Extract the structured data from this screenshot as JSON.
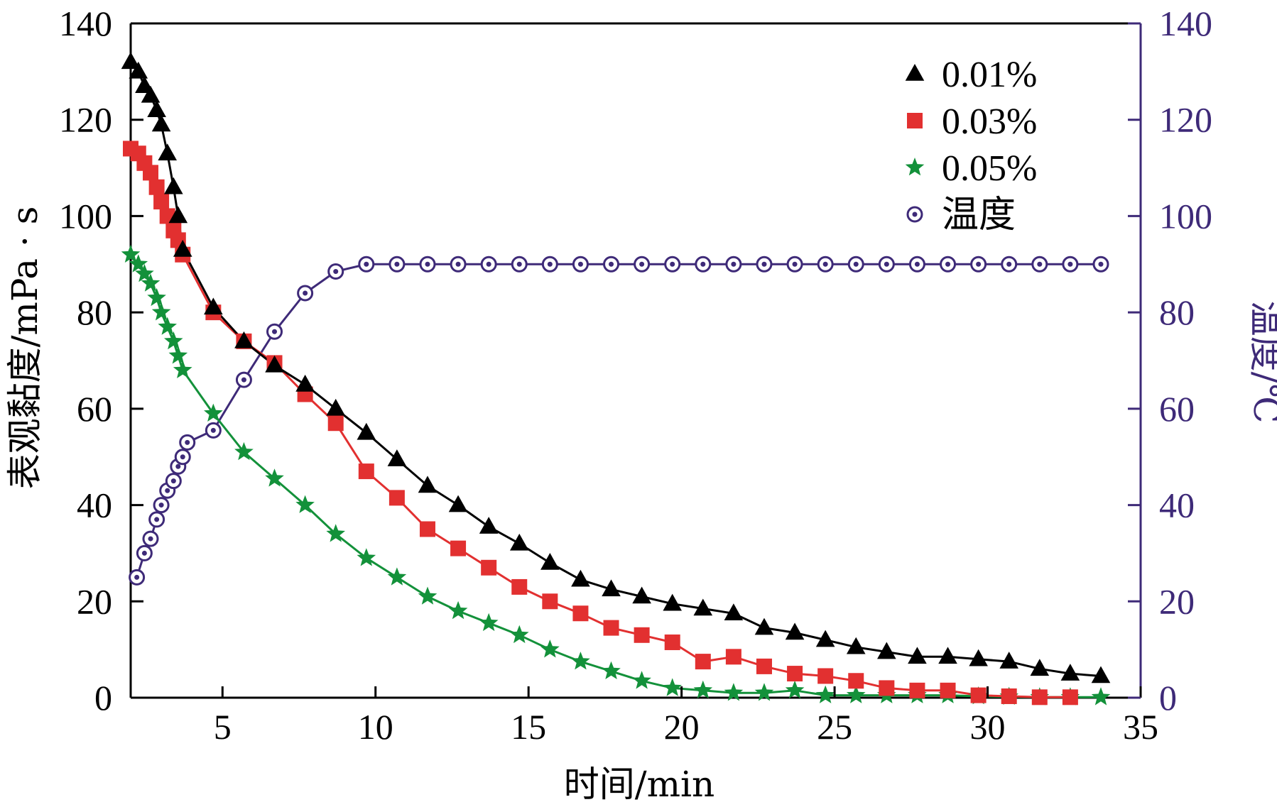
{
  "chart_data": {
    "type": "line",
    "title": "",
    "xlabel": "时间/min",
    "ylabel_left": "表观黏度/mPa · s",
    "ylabel_right": "温度/℃",
    "xlim": [
      2,
      35
    ],
    "ylim_left": [
      0,
      140
    ],
    "ylim_right": [
      0,
      140
    ],
    "x_ticks": [
      5,
      10,
      15,
      20,
      25,
      30,
      35
    ],
    "y_ticks_left": [
      0,
      20,
      40,
      60,
      80,
      100,
      120,
      140
    ],
    "y_ticks_right": [
      0,
      20,
      40,
      60,
      80,
      100,
      120,
      140
    ],
    "grid": false,
    "legend_position": "top-right",
    "colors": {
      "frame": "#000000",
      "right_axis": "#3e2a78",
      "s001": "#000000",
      "s003": "#e23030",
      "s005": "#13913a",
      "temp": "#3e2a78"
    },
    "series": [
      {
        "name": "0.01%",
        "marker": "triangle",
        "axis": "left",
        "x": [
          2.0,
          2.25,
          2.45,
          2.65,
          2.85,
          3.0,
          3.2,
          3.4,
          3.55,
          3.7,
          4.7,
          5.7,
          6.7,
          7.7,
          8.7,
          9.7,
          10.7,
          11.7,
          12.7,
          13.7,
          14.7,
          15.7,
          16.7,
          17.7,
          18.7,
          19.7,
          20.7,
          21.7,
          22.7,
          23.7,
          24.7,
          25.7,
          26.7,
          27.7,
          28.7,
          29.7,
          30.7,
          31.7,
          32.7,
          33.7
        ],
        "values": [
          132,
          130,
          127,
          125,
          122,
          119,
          113,
          106,
          100,
          93,
          81,
          74,
          69,
          65,
          60,
          55,
          49.5,
          44,
          40,
          35.5,
          32,
          28,
          24.5,
          22.5,
          21,
          19.5,
          18.5,
          17.5,
          14.5,
          13.5,
          12,
          10.5,
          9.5,
          8.5,
          8.5,
          8,
          7.5,
          6,
          5,
          4.5
        ]
      },
      {
        "name": "0.03%",
        "marker": "square",
        "axis": "left",
        "x": [
          2.0,
          2.25,
          2.45,
          2.65,
          2.85,
          3.0,
          3.2,
          3.4,
          3.55,
          3.7,
          4.7,
          5.7,
          6.7,
          7.7,
          8.7,
          9.7,
          10.7,
          11.7,
          12.7,
          13.7,
          14.7,
          15.7,
          16.7,
          17.7,
          18.7,
          19.7,
          20.7,
          21.7,
          22.7,
          23.7,
          24.7,
          25.7,
          26.7,
          27.7,
          28.7,
          29.7,
          30.7,
          31.7,
          32.7
        ],
        "values": [
          114,
          113,
          111,
          109,
          106,
          103,
          100,
          97,
          95,
          92,
          80,
          74,
          69.5,
          63,
          57,
          47,
          41.5,
          35,
          31,
          27,
          23,
          20,
          17.5,
          14.5,
          13,
          11.5,
          7.5,
          8.5,
          6.5,
          5,
          4.5,
          3.5,
          2,
          1.5,
          1.5,
          0.5,
          0.3,
          0.1,
          0.1
        ]
      },
      {
        "name": "0.05%",
        "marker": "star",
        "axis": "left",
        "x": [
          2.0,
          2.25,
          2.45,
          2.65,
          2.85,
          3.0,
          3.2,
          3.4,
          3.55,
          3.7,
          4.7,
          5.7,
          6.7,
          7.7,
          8.7,
          9.7,
          10.7,
          11.7,
          12.7,
          13.7,
          14.7,
          15.7,
          16.7,
          17.7,
          18.7,
          19.7,
          20.7,
          21.7,
          22.7,
          23.7,
          24.7,
          25.7,
          26.7,
          27.7,
          28.7,
          29.7,
          30.7,
          31.7,
          32.7,
          33.7
        ],
        "values": [
          92,
          90,
          88,
          86,
          83,
          80,
          77,
          74,
          71,
          68,
          59,
          51,
          45.5,
          40,
          34,
          29,
          25,
          21,
          18,
          15.5,
          13,
          10,
          7.5,
          5.5,
          3.5,
          2,
          1.5,
          1,
          1,
          1.5,
          0.5,
          0.5,
          0.5,
          0.5,
          0.5,
          0.3,
          0.2,
          0.1,
          0.1,
          0.1
        ]
      },
      {
        "name": "温度",
        "marker": "circle-dot",
        "axis": "right",
        "x": [
          2.2,
          2.45,
          2.65,
          2.85,
          3.0,
          3.2,
          3.4,
          3.55,
          3.7,
          3.85,
          4.7,
          5.7,
          6.7,
          7.7,
          8.7,
          9.7,
          10.7,
          11.7,
          12.7,
          13.7,
          14.7,
          15.7,
          16.7,
          17.7,
          18.7,
          19.7,
          20.7,
          21.7,
          22.7,
          23.7,
          24.7,
          25.7,
          26.7,
          27.7,
          28.7,
          29.7,
          30.7,
          31.7,
          32.7,
          33.7
        ],
        "values": [
          25,
          30,
          33,
          37,
          40,
          43,
          45,
          48,
          50,
          53,
          55.5,
          66,
          76,
          84,
          88.5,
          90,
          90,
          90,
          90,
          90,
          90,
          90,
          90,
          90,
          90,
          90,
          90,
          90,
          90,
          90,
          90,
          90,
          90,
          90,
          90,
          90,
          90,
          90,
          90,
          90
        ]
      }
    ]
  }
}
